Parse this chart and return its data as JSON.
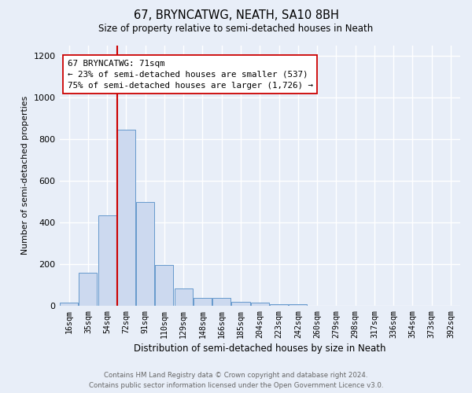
{
  "title": "67, BRYNCATWG, NEATH, SA10 8BH",
  "subtitle": "Size of property relative to semi-detached houses in Neath",
  "xlabel": "Distribution of semi-detached houses by size in Neath",
  "ylabel": "Number of semi-detached properties",
  "bar_labels": [
    "16sqm",
    "35sqm",
    "54sqm",
    "72sqm",
    "91sqm",
    "110sqm",
    "129sqm",
    "148sqm",
    "166sqm",
    "185sqm",
    "204sqm",
    "223sqm",
    "242sqm",
    "260sqm",
    "279sqm",
    "298sqm",
    "317sqm",
    "336sqm",
    "354sqm",
    "373sqm",
    "392sqm"
  ],
  "bar_values": [
    15,
    160,
    435,
    845,
    500,
    197,
    85,
    38,
    38,
    20,
    15,
    8,
    10,
    0,
    0,
    0,
    0,
    0,
    0,
    0,
    0
  ],
  "bar_color": "#ccd9ef",
  "bar_edge_color": "#6699cc",
  "property_line_color": "#cc0000",
  "annotation_text": "67 BRYNCATWG: 71sqm\n← 23% of semi-detached houses are smaller (537)\n75% of semi-detached houses are larger (1,726) →",
  "annotation_box_color": "white",
  "annotation_box_edge": "#cc0000",
  "ylim": [
    0,
    1250
  ],
  "yticks": [
    0,
    200,
    400,
    600,
    800,
    1000,
    1200
  ],
  "background_color": "#e8eef8",
  "grid_color": "white",
  "footer_line1": "Contains HM Land Registry data © Crown copyright and database right 2024.",
  "footer_line2": "Contains public sector information licensed under the Open Government Licence v3.0."
}
